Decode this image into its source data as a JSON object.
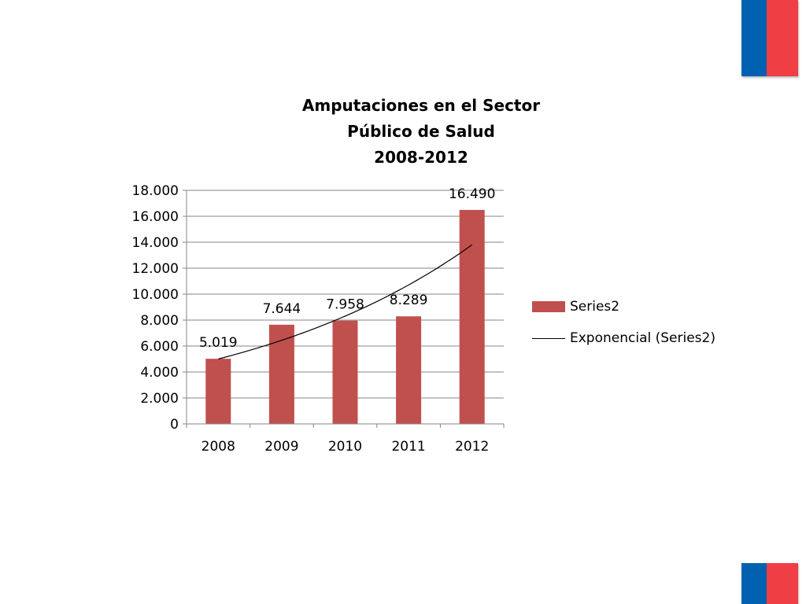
{
  "theme": {
    "flag_blue": "#0061B0",
    "flag_red": "#EF3F45",
    "bar_color": "#C0504D",
    "trend_color": "#000000"
  },
  "chart_data": {
    "type": "bar",
    "title_lines": [
      "Amputaciones  en el Sector",
      "Público  de Salud",
      "2008-2012"
    ],
    "categories": [
      "2008",
      "2009",
      "2010",
      "2011",
      "2012"
    ],
    "series": [
      {
        "name": "Series2",
        "values": [
          5019,
          7644,
          7958,
          8289,
          16490
        ],
        "data_labels": [
          "5.019",
          "7.644",
          "7.958",
          "8.289",
          "16.490"
        ]
      }
    ],
    "trendline": {
      "name": "Exponencial (Series2)",
      "type": "exponential",
      "start": 5000,
      "end": 13800
    },
    "yticks": [
      0,
      2000,
      4000,
      6000,
      8000,
      10000,
      12000,
      14000,
      16000,
      18000
    ],
    "ytick_labels": [
      "0",
      "2.000",
      "4.000",
      "6.000",
      "8.000",
      "10.000",
      "12.000",
      "14.000",
      "16.000",
      "18.000"
    ],
    "ylim": [
      0,
      18000
    ],
    "grid": true,
    "legend_position": "right"
  }
}
